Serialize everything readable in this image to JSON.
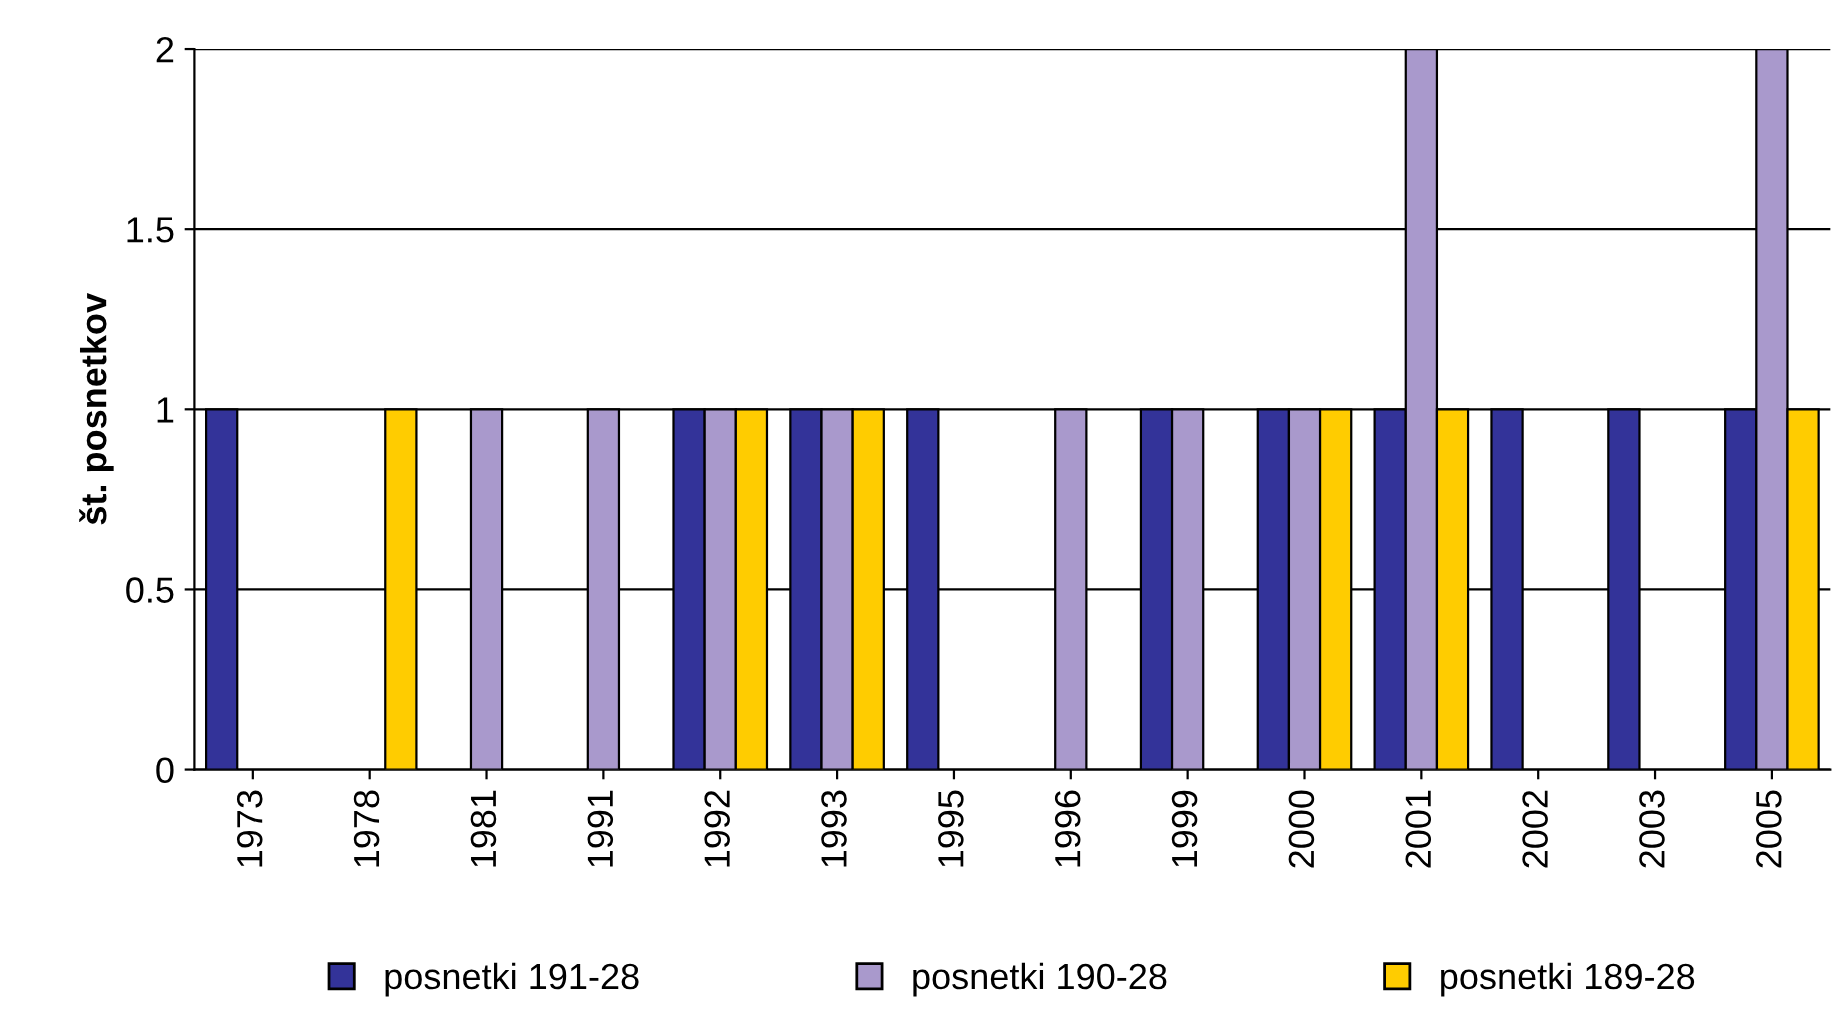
{
  "chart_data": {
    "type": "bar",
    "ylabel": "št. posnetkov",
    "categories": [
      "1973",
      "1978",
      "1981",
      "1991",
      "1992",
      "1993",
      "1995",
      "1996",
      "1999",
      "2000",
      "2001",
      "2002",
      "2003",
      "2005"
    ],
    "series": [
      {
        "name": "posnetki 191-28",
        "color": "#333399",
        "values": [
          1,
          null,
          null,
          null,
          1,
          1,
          1,
          null,
          1,
          1,
          1,
          1,
          1,
          1
        ]
      },
      {
        "name": "posnetki 190-28",
        "color": "#a999cc",
        "values": [
          null,
          null,
          1,
          1,
          1,
          1,
          null,
          1,
          1,
          1,
          2,
          null,
          null,
          2
        ]
      },
      {
        "name": "posnetki 189-28",
        "color": "#ffcc00",
        "values": [
          null,
          1,
          null,
          null,
          1,
          1,
          null,
          null,
          null,
          1,
          1,
          null,
          null,
          1
        ]
      }
    ],
    "ylim": [
      0,
      2
    ],
    "yticks": [
      0,
      0.5,
      1,
      1.5,
      2
    ],
    "grid": "y",
    "legend": "bottom"
  }
}
